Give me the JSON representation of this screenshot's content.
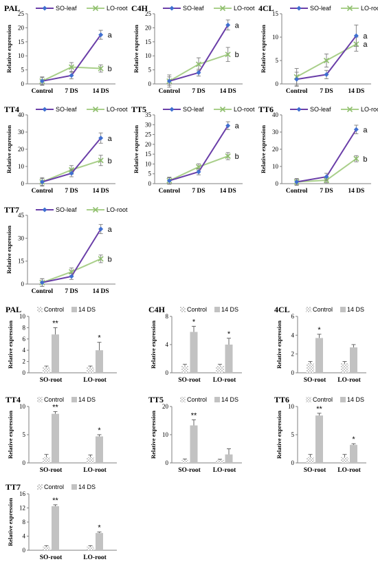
{
  "colors": {
    "so_line": "#6a3ea8",
    "so_marker": "#3f6fd0",
    "lo_line": "#a9cf8a",
    "lo_marker": "#8fbf6e",
    "bar_control_fill": "#ffffff",
    "bar_14ds_fill": "#c2c2c2",
    "axis": "#7f7f7f"
  },
  "chart_data": [
    {
      "type": "line",
      "title": "PAL",
      "ylabel": "Relative expression",
      "categories": [
        "Control",
        "7 DS",
        "14 DS"
      ],
      "ylim": [
        0,
        25
      ],
      "yticks": [
        "0",
        "5",
        "10",
        "15",
        "20",
        "25"
      ],
      "series": [
        {
          "name": "SO-leaf",
          "values": [
            1,
            3,
            17.5
          ],
          "errors": [
            1.5,
            1.2,
            1.6
          ],
          "end_label": "a"
        },
        {
          "name": "LO-root",
          "values": [
            1,
            6,
            5.5
          ],
          "errors": [
            1.3,
            1.6,
            1.3
          ],
          "end_label": "b"
        }
      ]
    },
    {
      "type": "line",
      "title": "C4H",
      "ylabel": "Relative expression",
      "categories": [
        "Control",
        "7 DS",
        "14 DS"
      ],
      "ylim": [
        0,
        25
      ],
      "yticks": [
        "0",
        "5",
        "10",
        "15",
        "20",
        "25"
      ],
      "series": [
        {
          "name": "SO-leaf",
          "values": [
            1,
            4,
            21
          ],
          "errors": [
            1.5,
            1.2,
            1.8
          ],
          "end_label": "a"
        },
        {
          "name": "LO-root",
          "values": [
            1,
            7,
            10.5
          ],
          "errors": [
            2.2,
            2.3,
            2.5
          ],
          "end_label": "b"
        }
      ]
    },
    {
      "type": "line",
      "title": "4CL",
      "ylabel": "Relative expression",
      "categories": [
        "Control",
        "7 DS",
        "14 DS"
      ],
      "ylim": [
        0,
        15
      ],
      "yticks": [
        "0",
        "5",
        "10",
        "15"
      ],
      "series": [
        {
          "name": "SO-leaf",
          "values": [
            1,
            2,
            10.3
          ],
          "errors": [
            1.5,
            0.9,
            2.3
          ],
          "end_label": "a"
        },
        {
          "name": "LO-root",
          "values": [
            1.5,
            5,
            8.5
          ],
          "errors": [
            1.8,
            1.4,
            1.5
          ],
          "end_label": "a"
        }
      ]
    },
    {
      "type": "line",
      "title": "TT4",
      "ylabel": "Relative expression",
      "categories": [
        "Control",
        "7 DS",
        "14 DS"
      ],
      "ylim": [
        0,
        40
      ],
      "yticks": [
        "0",
        "10",
        "20",
        "30",
        "40"
      ],
      "series": [
        {
          "name": "SO-leaf",
          "values": [
            1,
            6,
            26.5
          ],
          "errors": [
            2.5,
            2.0,
            3.0
          ],
          "end_label": "a"
        },
        {
          "name": "LO-root",
          "values": [
            1,
            8,
            13.5
          ],
          "errors": [
            2.0,
            2.5,
            3.0
          ],
          "end_label": "b"
        }
      ]
    },
    {
      "type": "line",
      "title": "TT5",
      "ylabel": "Relative expression",
      "categories": [
        "Control",
        "7 DS",
        "14 DS"
      ],
      "ylim": [
        0,
        35
      ],
      "yticks": [
        "0",
        "5",
        "10",
        "15",
        "20",
        "25",
        "30",
        "35"
      ],
      "series": [
        {
          "name": "SO-leaf",
          "values": [
            1.5,
            6,
            29.5
          ],
          "errors": [
            1.5,
            1.5,
            2.0
          ],
          "end_label": "a"
        },
        {
          "name": "LO-root",
          "values": [
            1.5,
            8.5,
            14
          ],
          "errors": [
            1.8,
            1.6,
            1.8
          ],
          "end_label": "b"
        }
      ]
    },
    {
      "type": "line",
      "title": "TT6",
      "ylabel": "Relative expression",
      "categories": [
        "Control",
        "7 DS",
        "14 DS"
      ],
      "ylim": [
        0,
        40
      ],
      "yticks": [
        "0",
        "10",
        "20",
        "30",
        "40"
      ],
      "series": [
        {
          "name": "SO-leaf",
          "values": [
            1,
            4,
            31.5
          ],
          "errors": [
            1.5,
            2.0,
            2.5
          ],
          "end_label": "a"
        },
        {
          "name": "LO-root",
          "values": [
            1,
            2,
            14.5
          ],
          "errors": [
            2.0,
            1.5,
            1.8
          ],
          "end_label": "b"
        }
      ]
    },
    {
      "type": "line",
      "title": "TT7",
      "ylabel": "Relative expression",
      "categories": [
        "Control",
        "7 DS",
        "14 DS"
      ],
      "ylim": [
        0,
        45
      ],
      "yticks": [
        "0",
        "15",
        "30",
        "45"
      ],
      "series": [
        {
          "name": "SO-leaf",
          "values": [
            1,
            5,
            36
          ],
          "errors": [
            2.5,
            2.0,
            3.0
          ],
          "end_label": "a"
        },
        {
          "name": "LO-root",
          "values": [
            1,
            8,
            16.5
          ],
          "errors": [
            2.5,
            2.5,
            2.5
          ],
          "end_label": "b"
        }
      ]
    },
    {
      "type": "bar",
      "title": "PAL",
      "ylabel": "Relative expression",
      "categories": [
        "SO-root",
        "LO-root"
      ],
      "ylim": [
        0,
        10
      ],
      "yticks": [
        "0",
        "2",
        "4",
        "6",
        "8",
        "10"
      ],
      "series": [
        {
          "name": "Control",
          "values": [
            1,
            1
          ],
          "errors": [
            0.2,
            0.2
          ]
        },
        {
          "name": "14 DS",
          "values": [
            6.8,
            4
          ],
          "errors": [
            1.2,
            1.4
          ]
        }
      ],
      "significance": [
        "**",
        "*"
      ]
    },
    {
      "type": "bar",
      "title": "C4H",
      "ylabel": "Relative expression",
      "categories": [
        "SO-root",
        "LO-root"
      ],
      "ylim": [
        0,
        8
      ],
      "yticks": [
        "0",
        "4",
        "8"
      ],
      "series": [
        {
          "name": "Control",
          "values": [
            1,
            1
          ],
          "errors": [
            0.2,
            0.2
          ]
        },
        {
          "name": "14 DS",
          "values": [
            5.8,
            4
          ],
          "errors": [
            0.8,
            0.9
          ]
        }
      ],
      "significance": [
        "*",
        "*"
      ]
    },
    {
      "type": "bar",
      "title": "4CL",
      "ylabel": "Relative expression",
      "categories": [
        "SO-root",
        "LO-root"
      ],
      "ylim": [
        0,
        6
      ],
      "yticks": [
        "0",
        "2",
        "4",
        "6"
      ],
      "series": [
        {
          "name": "Control",
          "values": [
            1,
            1
          ],
          "errors": [
            0.2,
            0.2
          ]
        },
        {
          "name": "14 DS",
          "values": [
            3.7,
            2.7
          ],
          "errors": [
            0.4,
            0.3
          ]
        }
      ],
      "significance": [
        "*",
        ""
      ]
    },
    {
      "type": "bar",
      "title": "TT4",
      "ylabel": "Relative expression",
      "categories": [
        "SO-root",
        "LO-root"
      ],
      "ylim": [
        0,
        10
      ],
      "yticks": [
        "0",
        "5",
        "10"
      ],
      "series": [
        {
          "name": "Control",
          "values": [
            1,
            1
          ],
          "errors": [
            0.5,
            0.4
          ]
        },
        {
          "name": "14 DS",
          "values": [
            8.7,
            4.7
          ],
          "errors": [
            0.4,
            0.3
          ]
        }
      ],
      "significance": [
        "**",
        "*"
      ]
    },
    {
      "type": "bar",
      "title": "TT5",
      "ylabel": "Relative expression",
      "categories": [
        "SO-root",
        "LO-root"
      ],
      "ylim": [
        0,
        20
      ],
      "yticks": [
        "0",
        "10",
        "20"
      ],
      "series": [
        {
          "name": "Control",
          "values": [
            1,
            1
          ],
          "errors": [
            0.4,
            0.3
          ]
        },
        {
          "name": "14 DS",
          "values": [
            13.3,
            3
          ],
          "errors": [
            2.0,
            2.0
          ]
        }
      ],
      "significance": [
        "**",
        ""
      ]
    },
    {
      "type": "bar",
      "title": "TT6",
      "ylabel": "Relative expression",
      "categories": [
        "SO-root",
        "LO-root"
      ],
      "ylim": [
        0,
        10
      ],
      "yticks": [
        "0",
        "5",
        "10"
      ],
      "series": [
        {
          "name": "Control",
          "values": [
            1,
            1
          ],
          "errors": [
            0.5,
            0.5
          ]
        },
        {
          "name": "14 DS",
          "values": [
            8.4,
            3.2
          ],
          "errors": [
            0.4,
            0.2
          ]
        }
      ],
      "significance": [
        "**",
        "*"
      ]
    },
    {
      "type": "bar",
      "title": "TT7",
      "ylabel": "Relative expression",
      "categories": [
        "SO-root",
        "LO-root"
      ],
      "ylim": [
        0,
        16
      ],
      "yticks": [
        "0",
        "4",
        "8",
        "12",
        "16"
      ],
      "series": [
        {
          "name": "Control",
          "values": [
            1,
            1
          ],
          "errors": [
            0.3,
            0.3
          ]
        },
        {
          "name": "14 DS",
          "values": [
            12.5,
            4.9
          ],
          "errors": [
            0.4,
            0.3
          ]
        }
      ],
      "significance": [
        "**",
        "*"
      ]
    }
  ]
}
